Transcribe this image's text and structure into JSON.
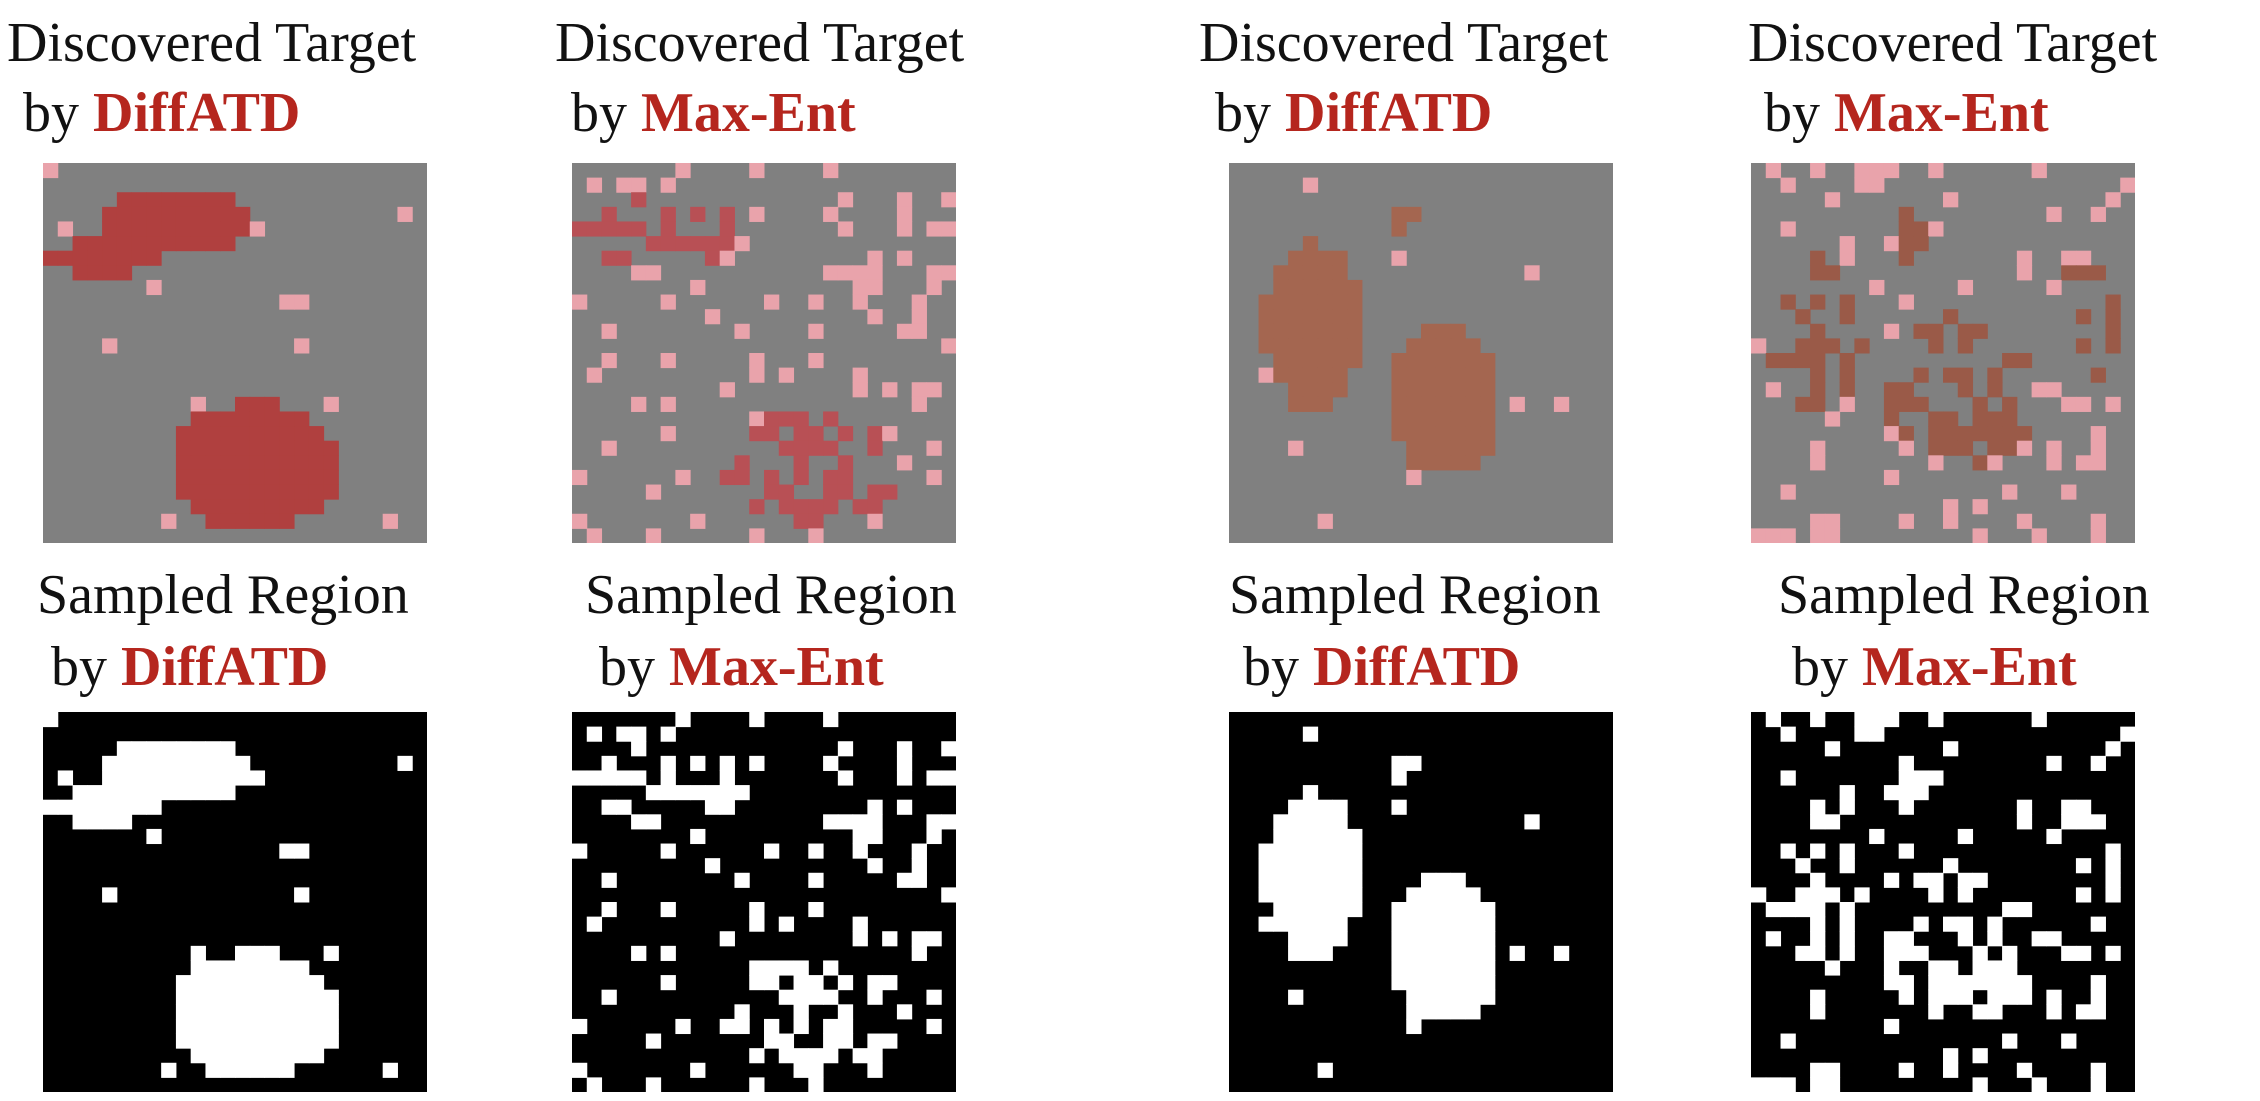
{
  "panels": [
    {
      "target_title": "Discovered Target",
      "target_by": "by",
      "target_method": "DiffATD",
      "region_title": "Sampled Region",
      "region_by": "by",
      "region_method": "DiffATD"
    },
    {
      "target_title": "Discovered Target",
      "target_by": "by",
      "target_method": "Max-Ent",
      "region_title": "Sampled Region",
      "region_by": "by",
      "region_method": "Max-Ent"
    },
    {
      "target_title": "Discovered Target",
      "target_by": "by",
      "target_method": "DiffATD",
      "region_title": "Sampled Region",
      "region_by": "by",
      "region_method": "DiffATD"
    },
    {
      "target_title": "Discovered Target",
      "target_by": "by",
      "target_method": "Max-Ent",
      "region_title": "Sampled Region",
      "region_by": "by",
      "region_method": "Max-Ent"
    }
  ]
}
